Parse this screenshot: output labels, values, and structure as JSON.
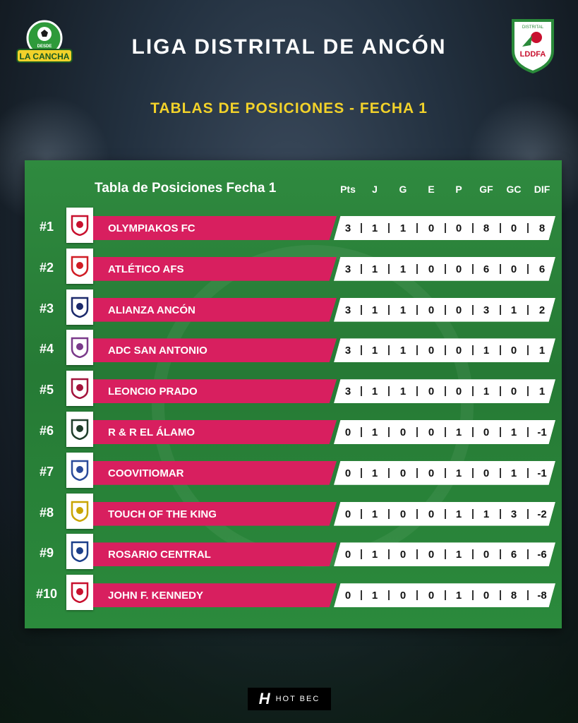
{
  "header": {
    "title": "LIGA DISTRITAL DE ANCÓN",
    "subtitle": "TABLAS DE POSICIONES - FECHA 1",
    "left_logo_text": "LA CANCHA",
    "left_logo_small": "DESDE",
    "right_logo_text": "LDDFA",
    "right_logo_small": "DISTRITAL"
  },
  "table": {
    "heading": "Tabla de Posiciones Fecha 1",
    "columns": [
      "Pts",
      "J",
      "G",
      "E",
      "P",
      "GF",
      "GC",
      "DIF"
    ],
    "rows": [
      {
        "rank": "#1",
        "team": "OLYMPIAKOS FC",
        "badge_icon": "olympiakos-crest-icon",
        "badge_color": "#c8102e",
        "stats": [
          "3",
          "1",
          "1",
          "0",
          "0",
          "8",
          "0",
          "8"
        ]
      },
      {
        "rank": "#2",
        "team": "ATLÉTICO AFS",
        "badge_icon": "afs-crest-icon",
        "badge_color": "#d01c24",
        "stats": [
          "3",
          "1",
          "1",
          "0",
          "0",
          "6",
          "0",
          "6"
        ]
      },
      {
        "rank": "#3",
        "team": "ALIANZA ANCÓN",
        "badge_icon": "alianza-ancon-crest-icon",
        "badge_color": "#1c2a6b",
        "stats": [
          "3",
          "1",
          "1",
          "0",
          "0",
          "3",
          "1",
          "2"
        ]
      },
      {
        "rank": "#4",
        "team": "ADC SAN ANTONIO",
        "badge_icon": "san-antonio-crest-icon",
        "badge_color": "#7a3a8a",
        "stats": [
          "3",
          "1",
          "1",
          "0",
          "0",
          "1",
          "0",
          "1"
        ]
      },
      {
        "rank": "#5",
        "team": "LEONCIO PRADO",
        "badge_icon": "leoncio-prado-crest-icon",
        "badge_color": "#a3133c",
        "stats": [
          "3",
          "1",
          "1",
          "0",
          "0",
          "1",
          "0",
          "1"
        ]
      },
      {
        "rank": "#6",
        "team": "R & R EL ÁLAMO",
        "badge_icon": "el-alamo-crest-icon",
        "badge_color": "#1f3d2a",
        "stats": [
          "0",
          "1",
          "0",
          "0",
          "1",
          "0",
          "1",
          "-1"
        ]
      },
      {
        "rank": "#7",
        "team": "COOVITIOMAR",
        "badge_icon": "coovitiomar-crest-icon",
        "badge_color": "#2a4a9a",
        "stats": [
          "0",
          "1",
          "0",
          "0",
          "1",
          "0",
          "1",
          "-1"
        ]
      },
      {
        "rank": "#8",
        "team": "TOUCH OF THE KING",
        "badge_icon": "touch-of-the-king-crest-icon",
        "badge_color": "#c9a500",
        "stats": [
          "0",
          "1",
          "0",
          "0",
          "1",
          "1",
          "3",
          "-2"
        ]
      },
      {
        "rank": "#9",
        "team": "ROSARIO CENTRAL",
        "badge_icon": "rosario-central-crest-icon",
        "badge_color": "#1c3f8a",
        "stats": [
          "0",
          "1",
          "0",
          "0",
          "1",
          "0",
          "6",
          "-6"
        ]
      },
      {
        "rank": "#10",
        "team": "JOHN F. KENNEDY",
        "badge_icon": "jfk-crest-icon",
        "badge_color": "#c8102e",
        "stats": [
          "0",
          "1",
          "0",
          "0",
          "1",
          "0",
          "8",
          "-8"
        ]
      }
    ]
  },
  "footer": {
    "mark": "H",
    "text": "HOT BEC"
  },
  "colors": {
    "team_bar": "#d81f5f",
    "panel_green": "#2b8a3c",
    "subtitle_yellow": "#f2d22a"
  }
}
